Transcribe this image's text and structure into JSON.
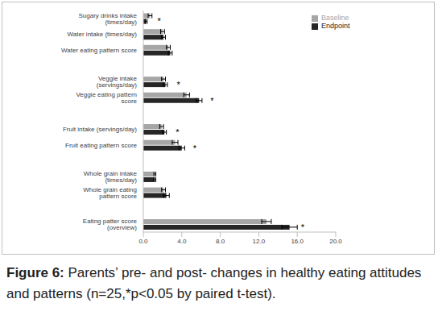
{
  "chart_data": {
    "type": "bar",
    "orientation": "horizontal",
    "title": "Figure 6: Parents’ pre- and post- changes in healthy eating attitudes and patterns (n=25,*p<0.05 by paired t-test).",
    "categories": [
      "Sugary drinks intake (times/day)",
      "Water intake (times/day)",
      "Water eating pattern score",
      null,
      "Veggie intake (servings/day)",
      "Veggie eating pattern score",
      null,
      "Fruit intake (servings/day)",
      "Fruit eating pattern score",
      null,
      "Whole grain intake (times/day)",
      "Whole grain eating pattern score",
      null,
      "Eating patter score (overview)"
    ],
    "series": [
      {
        "name": "Baseline",
        "color": "#a6a6a6",
        "values": [
          0.7,
          2.0,
          2.6,
          null,
          2.1,
          4.5,
          null,
          1.9,
          3.3,
          null,
          1.2,
          2.1,
          null,
          12.8
        ],
        "errors": [
          0.2,
          0.2,
          0.2,
          null,
          0.2,
          0.3,
          null,
          0.2,
          0.3,
          null,
          0.1,
          0.2,
          null,
          0.5
        ]
      },
      {
        "name": "Endpoint",
        "color": "#262626",
        "values": [
          0.3,
          2.1,
          2.8,
          null,
          2.3,
          5.8,
          null,
          2.2,
          4.0,
          null,
          1.2,
          2.4,
          null,
          15.2
        ],
        "errors": [
          0.1,
          0.2,
          0.2,
          null,
          0.2,
          0.3,
          null,
          0.2,
          0.3,
          null,
          0.1,
          0.3,
          null,
          0.8
        ]
      }
    ],
    "annotations": [
      "*",
      null,
      null,
      null,
      "*",
      "*",
      null,
      "*",
      "*",
      null,
      null,
      null,
      null,
      "*"
    ],
    "xlim": [
      0,
      20
    ],
    "xticks": [
      {
        "value": 0,
        "label": "0.0"
      },
      {
        "value": 4,
        "label": "4.0"
      },
      {
        "value": 8,
        "label": "8.0"
      },
      {
        "value": 12,
        "label": "12.0"
      },
      {
        "value": 16,
        "label": "16.0"
      },
      {
        "value": 20,
        "label": "20.0"
      }
    ],
    "grid": false,
    "legend": "upper right",
    "tick_labels": true
  }
}
